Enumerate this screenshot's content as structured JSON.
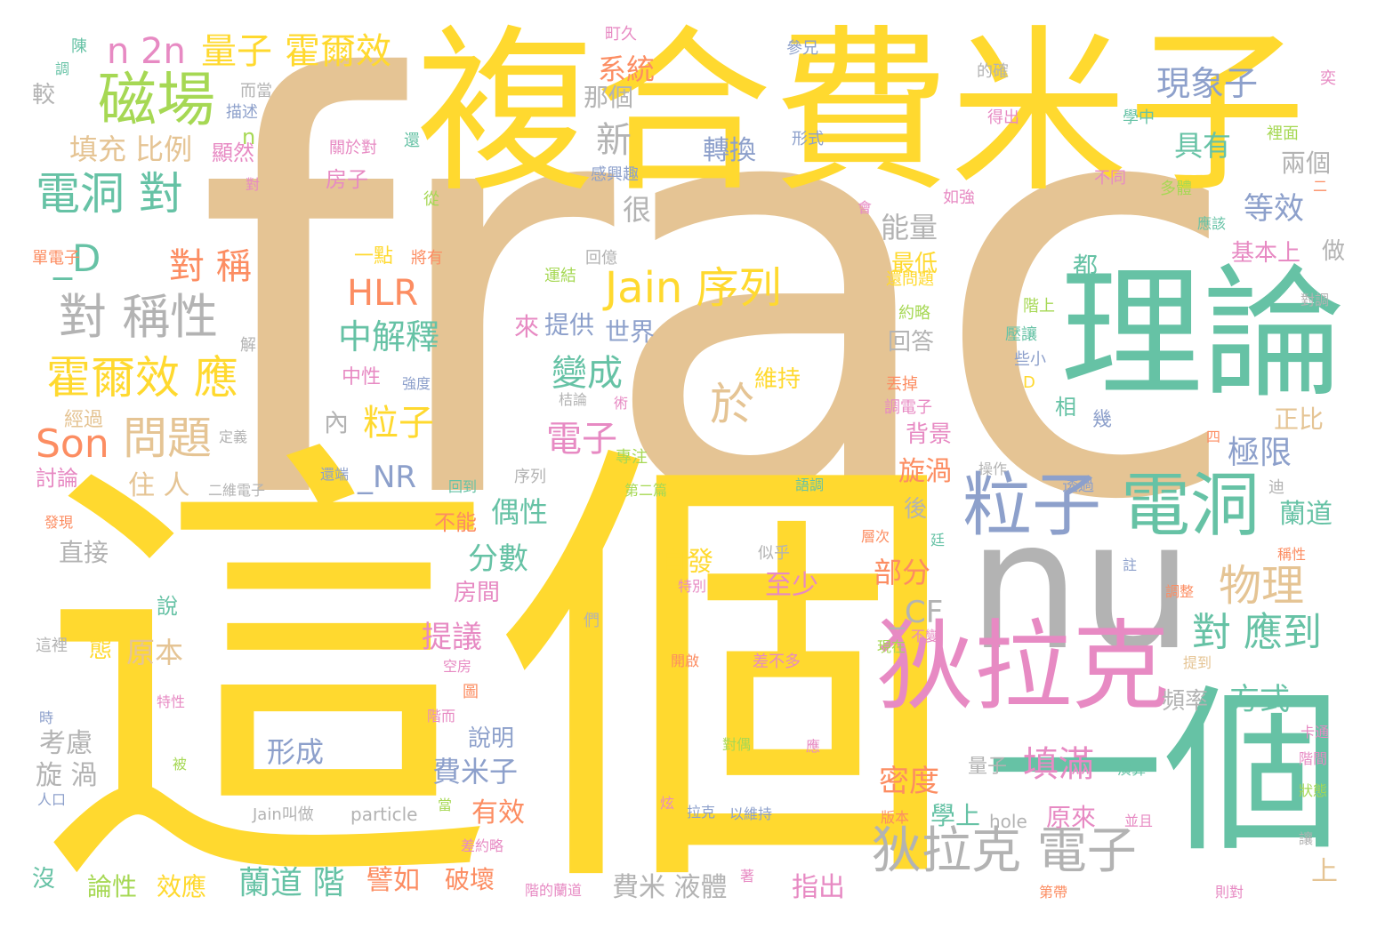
{
  "palette": {
    "tan": "#e5c494",
    "yellow": "#ffd92f",
    "green": "#66c2a5",
    "pink": "#e78ac3",
    "blue": "#8da0cb",
    "orange": "#fc8d62",
    "lime": "#a6d854",
    "gray": "#b3b3b3"
  },
  "words": [
    {
      "text": "frac",
      "color": "tan"
    },
    {
      "text": "這個",
      "color": "yellow"
    },
    {
      "text": "複合費米子",
      "color": "yellow"
    },
    {
      "text": "一個",
      "color": "green"
    },
    {
      "text": "nu",
      "color": "gray"
    },
    {
      "text": "理論",
      "color": "green"
    },
    {
      "text": "狄拉克",
      "color": "pink"
    },
    {
      "text": "電洞",
      "color": "green"
    },
    {
      "text": "粒子",
      "color": "blue"
    },
    {
      "text": "磁場",
      "color": "lime"
    },
    {
      "text": "狄拉克 電子",
      "color": "gray"
    },
    {
      "text": "對 稱性",
      "color": "gray"
    },
    {
      "text": "電洞 對",
      "color": "green"
    },
    {
      "text": "霍爾效 應",
      "color": "yellow"
    },
    {
      "text": "Jain 序列",
      "color": "yellow"
    },
    {
      "text": "物理",
      "color": "tan"
    },
    {
      "text": "問題",
      "color": "tan"
    },
    {
      "text": "Son",
      "color": "orange"
    },
    {
      "text": "n 2n",
      "color": "pink"
    },
    {
      "text": "量子",
      "color": "yellow"
    },
    {
      "text": "霍爾效",
      "color": "yellow"
    },
    {
      "text": "對 應到",
      "color": "green"
    },
    {
      "text": "填滿",
      "color": "pink"
    },
    {
      "text": "蘭道 階",
      "color": "green"
    },
    {
      "text": "HLR",
      "color": "orange"
    },
    {
      "text": "對 稱",
      "color": "orange"
    },
    {
      "text": "_D",
      "color": "green"
    },
    {
      "text": "中解釋",
      "color": "green"
    },
    {
      "text": "粒子",
      "color": "yellow"
    },
    {
      "text": "於",
      "color": "tan"
    },
    {
      "text": "變成",
      "color": "green"
    },
    {
      "text": "電子",
      "color": "pink"
    },
    {
      "text": "現象子",
      "color": "blue"
    },
    {
      "text": "新",
      "color": "gray"
    },
    {
      "text": "系統",
      "color": "orange"
    },
    {
      "text": "那個",
      "color": "gray"
    },
    {
      "text": "填充 比例",
      "color": "tan"
    },
    {
      "text": "轉換",
      "color": "blue"
    },
    {
      "text": "具有",
      "color": "green"
    },
    {
      "text": "等效",
      "color": "blue"
    },
    {
      "text": "很",
      "color": "gray"
    },
    {
      "text": "能量",
      "color": "gray"
    },
    {
      "text": "最低",
      "color": "yellow"
    },
    {
      "text": "極限",
      "color": "blue"
    },
    {
      "text": "兩個",
      "color": "gray"
    },
    {
      "text": "_NR",
      "color": "blue"
    },
    {
      "text": "住 人",
      "color": "tan"
    },
    {
      "text": "偶性",
      "color": "green"
    },
    {
      "text": "分數",
      "color": "green"
    },
    {
      "text": "提議",
      "color": "pink"
    },
    {
      "text": "原本",
      "color": "tan"
    },
    {
      "text": "直接",
      "color": "gray"
    },
    {
      "text": "自發",
      "color": "yellow"
    },
    {
      "text": "至少",
      "color": "pink"
    },
    {
      "text": "部分",
      "color": "orange"
    },
    {
      "text": "_CF",
      "color": "gray"
    },
    {
      "text": "密度",
      "color": "orange"
    },
    {
      "text": "方式",
      "color": "green"
    },
    {
      "text": "蘭道",
      "color": "green"
    },
    {
      "text": "旋渦",
      "color": "orange"
    },
    {
      "text": "形成",
      "color": "blue"
    },
    {
      "text": "費米子",
      "color": "blue"
    },
    {
      "text": "有效",
      "color": "orange"
    },
    {
      "text": "考慮",
      "color": "gray"
    },
    {
      "text": "旋 渦",
      "color": "gray"
    },
    {
      "text": "論性",
      "color": "lime"
    },
    {
      "text": "效應",
      "color": "yellow"
    },
    {
      "text": "譬如",
      "color": "orange"
    },
    {
      "text": "破壞",
      "color": "orange"
    },
    {
      "text": "費米 液體",
      "color": "gray"
    },
    {
      "text": "指出",
      "color": "pink"
    },
    {
      "text": "學上",
      "color": "green"
    },
    {
      "text": "原來",
      "color": "pink"
    },
    {
      "text": "上",
      "color": "tan"
    },
    {
      "text": "正比",
      "color": "tan"
    },
    {
      "text": "基本上",
      "color": "pink"
    },
    {
      "text": "做",
      "color": "gray"
    },
    {
      "text": "背景",
      "color": "pink"
    },
    {
      "text": "後",
      "color": "gray"
    },
    {
      "text": "相",
      "color": "green"
    },
    {
      "text": "說明",
      "color": "blue"
    },
    {
      "text": "房間",
      "color": "pink"
    },
    {
      "text": "頻率",
      "color": "gray"
    },
    {
      "text": "回答",
      "color": "gray"
    },
    {
      "text": "都",
      "color": "green"
    },
    {
      "text": "提供",
      "color": "blue"
    },
    {
      "text": "世界",
      "color": "blue"
    },
    {
      "text": "來",
      "color": "pink"
    },
    {
      "text": "維持",
      "color": "yellow"
    },
    {
      "text": "一點",
      "color": "yellow"
    },
    {
      "text": "顯然",
      "color": "pink"
    },
    {
      "text": "房子",
      "color": "pink"
    },
    {
      "text": "內",
      "color": "gray"
    },
    {
      "text": "經過",
      "color": "tan"
    },
    {
      "text": "討論",
      "color": "pink"
    },
    {
      "text": "中性",
      "color": "pink"
    },
    {
      "text": "不能",
      "color": "orange"
    },
    {
      "text": "態",
      "color": "yellow"
    },
    {
      "text": "說",
      "color": "green"
    },
    {
      "text": "量子",
      "color": "gray"
    },
    {
      "text": "較",
      "color": "gray"
    },
    {
      "text": "沒",
      "color": "green"
    },
    {
      "text": "n",
      "color": "lime"
    },
    {
      "text": "hole",
      "color": "gray"
    },
    {
      "text": "particle",
      "color": "gray"
    },
    {
      "text": "Jain叫做",
      "color": "gray"
    },
    {
      "text": "陳",
      "color": "green"
    },
    {
      "text": "調",
      "color": "green"
    },
    {
      "text": "町久",
      "color": "pink"
    },
    {
      "text": "參兄",
      "color": "blue"
    },
    {
      "text": "而當",
      "color": "gray"
    },
    {
      "text": "描述",
      "color": "blue"
    },
    {
      "text": "關於對",
      "color": "pink"
    },
    {
      "text": "還",
      "color": "green"
    },
    {
      "text": "形式",
      "color": "blue"
    },
    {
      "text": "感興趣",
      "color": "blue"
    },
    {
      "text": "得出",
      "color": "pink"
    },
    {
      "text": "的確",
      "color": "gray"
    },
    {
      "text": "學中",
      "color": "green"
    },
    {
      "text": "裡面",
      "color": "lime"
    },
    {
      "text": "奕",
      "color": "pink"
    },
    {
      "text": "不同",
      "color": "pink"
    },
    {
      "text": "多體",
      "color": "lime"
    },
    {
      "text": "如強",
      "color": "pink"
    },
    {
      "text": "從",
      "color": "lime"
    },
    {
      "text": "對",
      "color": "pink"
    },
    {
      "text": "將有",
      "color": "orange"
    },
    {
      "text": "單電子",
      "color": "orange"
    },
    {
      "text": "解",
      "color": "gray"
    },
    {
      "text": "運結",
      "color": "lime"
    },
    {
      "text": "回億",
      "color": "gray"
    },
    {
      "text": "還問題",
      "color": "yellow"
    },
    {
      "text": "約略",
      "color": "lime"
    },
    {
      "text": "階上",
      "color": "lime"
    },
    {
      "text": "壓讓",
      "color": "green"
    },
    {
      "text": "些小",
      "color": "blue"
    },
    {
      "text": "D",
      "color": "yellow"
    },
    {
      "text": "丟掉",
      "color": "orange"
    },
    {
      "text": "調電子",
      "color": "pink"
    },
    {
      "text": "應該",
      "color": "green"
    },
    {
      "text": "對調",
      "color": "gray"
    },
    {
      "text": "幾",
      "color": "blue"
    },
    {
      "text": "四",
      "color": "orange"
    },
    {
      "text": "強度",
      "color": "blue"
    },
    {
      "text": "桔論",
      "color": "gray"
    },
    {
      "text": "術",
      "color": "pink"
    },
    {
      "text": "定義",
      "color": "gray"
    },
    {
      "text": "專注",
      "color": "lime"
    },
    {
      "text": "還端",
      "color": "blue"
    },
    {
      "text": "序列",
      "color": "gray"
    },
    {
      "text": "二維電子",
      "color": "gray"
    },
    {
      "text": "回到",
      "color": "green"
    },
    {
      "text": "第二篇",
      "color": "lime"
    },
    {
      "text": "語調",
      "color": "green"
    },
    {
      "text": "操作",
      "color": "gray"
    },
    {
      "text": "透過",
      "color": "blue"
    },
    {
      "text": "迪",
      "color": "gray"
    },
    {
      "text": "稱性",
      "color": "orange"
    },
    {
      "text": "似乎",
      "color": "gray"
    },
    {
      "text": "特別",
      "color": "pink"
    },
    {
      "text": "調整",
      "color": "orange"
    },
    {
      "text": "層次",
      "color": "orange"
    },
    {
      "text": "註",
      "color": "blue"
    },
    {
      "text": "廷",
      "color": "green"
    },
    {
      "text": "不變",
      "color": "pink"
    },
    {
      "text": "現在",
      "color": "lime"
    },
    {
      "text": "開啟",
      "color": "orange"
    },
    {
      "text": "差不多",
      "color": "pink"
    },
    {
      "text": "們",
      "color": "gray"
    },
    {
      "text": "空房",
      "color": "pink"
    },
    {
      "text": "圖",
      "color": "orange"
    },
    {
      "text": "階而",
      "color": "pink"
    },
    {
      "text": "提到",
      "color": "tan"
    },
    {
      "text": "這裡",
      "color": "gray"
    },
    {
      "text": "發現",
      "color": "orange"
    },
    {
      "text": "時",
      "color": "blue"
    },
    {
      "text": "特性",
      "color": "pink"
    },
    {
      "text": "被",
      "color": "lime"
    },
    {
      "text": "人口",
      "color": "blue"
    },
    {
      "text": "炫",
      "color": "pink"
    },
    {
      "text": "拉克",
      "color": "blue"
    },
    {
      "text": "以維持",
      "color": "blue"
    },
    {
      "text": "對偶",
      "color": "lime"
    },
    {
      "text": "應",
      "color": "pink"
    },
    {
      "text": "當",
      "color": "lime"
    },
    {
      "text": "差約略",
      "color": "pink"
    },
    {
      "text": "階的蘭道",
      "color": "pink"
    },
    {
      "text": "著",
      "color": "pink"
    },
    {
      "text": "第帶",
      "color": "orange"
    },
    {
      "text": "版本",
      "color": "orange"
    },
    {
      "text": "並且",
      "color": "pink"
    },
    {
      "text": "演算",
      "color": "green"
    },
    {
      "text": "讓",
      "color": "gray"
    },
    {
      "text": "則對",
      "color": "pink"
    },
    {
      "text": "卡通",
      "color": "pink"
    },
    {
      "text": "階間",
      "color": "pink"
    },
    {
      "text": "狀態",
      "color": "lime"
    },
    {
      "text": "二",
      "color": "orange"
    },
    {
      "text": "會",
      "color": "pink"
    }
  ]
}
